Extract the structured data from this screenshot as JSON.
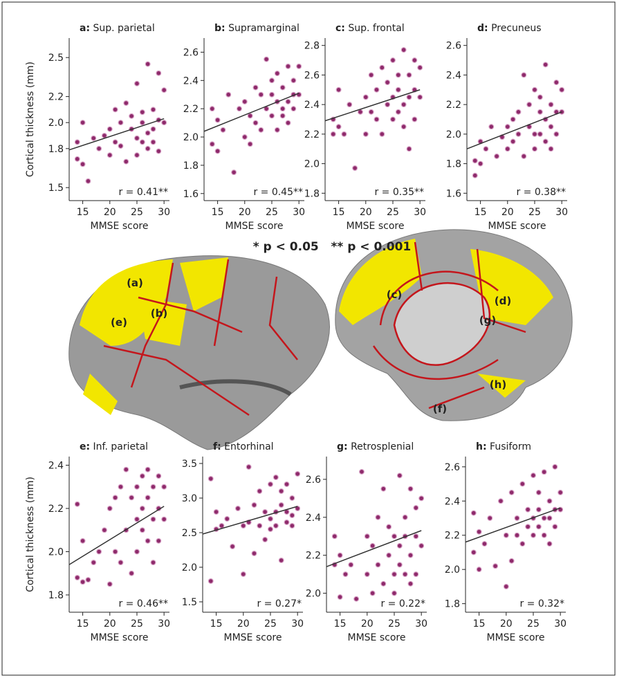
{
  "chart_data": [
    {
      "type": "scatter",
      "panel": "a:",
      "title": "Sup. parietal",
      "x_label": "MMSE score",
      "y_label": "Cortical thickness (mm)",
      "annotation": "r = 0.41**",
      "color": "#8e2a6b",
      "x": [
        14,
        14,
        15,
        15,
        16,
        17,
        18,
        19,
        20,
        20,
        21,
        21,
        22,
        22,
        23,
        23,
        24,
        24,
        25,
        25,
        25,
        26,
        26,
        26,
        27,
        27,
        27,
        28,
        28,
        28,
        29,
        29,
        29,
        30,
        30
      ],
      "y": [
        1.72,
        1.85,
        2.0,
        1.68,
        1.55,
        1.88,
        1.8,
        1.9,
        1.95,
        1.75,
        2.1,
        1.85,
        1.82,
        2.0,
        2.15,
        1.7,
        1.95,
        2.05,
        2.3,
        1.88,
        1.75,
        2.0,
        1.85,
        2.08,
        2.45,
        1.92,
        1.8,
        2.1,
        1.95,
        1.85,
        2.38,
        2.02,
        1.78,
        2.25,
        2.0
      ],
      "trend_x": [
        12.5,
        30
      ],
      "trend_y": [
        1.79,
        2.03
      ],
      "xlim": [
        12.5,
        31
      ],
      "ylim": [
        1.4,
        2.65
      ],
      "xticks": [
        15,
        20,
        25,
        30
      ],
      "yticks": [
        1.5,
        1.8,
        {
          "value": 2,
          "label": "2.0"
        },
        2.2,
        2.5
      ]
    },
    {
      "type": "scatter",
      "panel": "b:",
      "title": "Supramarginal",
      "x_label": "MMSE score",
      "annotation": "r = 0.45**",
      "color": "#8e2a6b",
      "x": [
        14,
        14,
        15,
        15,
        16,
        17,
        18,
        19,
        20,
        20,
        21,
        21,
        22,
        22,
        23,
        23,
        24,
        24,
        25,
        25,
        25,
        26,
        26,
        26,
        27,
        27,
        27,
        28,
        28,
        28,
        29,
        29,
        29,
        30,
        30
      ],
      "y": [
        1.95,
        2.2,
        1.9,
        2.12,
        2.05,
        2.3,
        1.75,
        2.2,
        2.0,
        2.25,
        2.15,
        1.95,
        2.35,
        2.1,
        2.3,
        2.05,
        2.55,
        2.2,
        2.4,
        2.15,
        2.3,
        2.25,
        2.05,
        2.45,
        2.2,
        2.35,
        2.15,
        2.5,
        2.25,
        2.1,
        2.3,
        2.4,
        2.2,
        2.5,
        2.3
      ],
      "trend_x": [
        12.5,
        30
      ],
      "trend_y": [
        2.04,
        2.31
      ],
      "xlim": [
        12.5,
        31
      ],
      "ylim": [
        1.55,
        2.7
      ],
      "xticks": [
        15,
        20,
        25,
        30
      ],
      "yticks": [
        1.6,
        1.8,
        {
          "value": 2,
          "label": "2.0"
        },
        2.2,
        2.4,
        2.6
      ]
    },
    {
      "type": "scatter",
      "panel": "c:",
      "title": "Sup. frontal",
      "x_label": "MMSE score",
      "annotation": "r = 0.35**",
      "color": "#8e2a6b",
      "x": [
        14,
        14,
        15,
        15,
        16,
        17,
        18,
        19,
        20,
        20,
        21,
        21,
        22,
        22,
        23,
        23,
        24,
        24,
        25,
        25,
        25,
        26,
        26,
        26,
        27,
        27,
        27,
        28,
        28,
        28,
        29,
        29,
        29,
        30,
        30
      ],
      "y": [
        2.2,
        2.3,
        2.5,
        2.25,
        2.2,
        2.4,
        1.97,
        2.35,
        2.45,
        2.2,
        2.6,
        2.35,
        2.3,
        2.5,
        2.65,
        2.2,
        2.4,
        2.55,
        2.7,
        2.45,
        2.3,
        2.6,
        2.35,
        2.5,
        2.77,
        2.4,
        2.25,
        2.6,
        2.45,
        2.1,
        2.7,
        2.5,
        2.3,
        2.65,
        2.45
      ],
      "trend_x": [
        12.5,
        30
      ],
      "trend_y": [
        2.29,
        2.5
      ],
      "xlim": [
        12.5,
        31
      ],
      "ylim": [
        1.75,
        2.85
      ],
      "xticks": [
        15,
        20,
        25,
        30
      ],
      "yticks": [
        1.8,
        {
          "value": 2,
          "label": "2.0"
        },
        2.2,
        2.4,
        2.6,
        2.8
      ]
    },
    {
      "type": "scatter",
      "panel": "d:",
      "title": "Precuneus",
      "x_label": "MMSE score",
      "annotation": "r = 0.38**",
      "color": "#8e2a6b",
      "x": [
        14,
        14,
        15,
        15,
        16,
        17,
        18,
        19,
        20,
        20,
        21,
        21,
        22,
        22,
        23,
        23,
        24,
        24,
        25,
        25,
        25,
        26,
        26,
        26,
        27,
        27,
        27,
        28,
        28,
        28,
        29,
        29,
        29,
        30,
        30
      ],
      "y": [
        1.72,
        1.82,
        1.95,
        1.8,
        1.9,
        2.05,
        1.85,
        1.98,
        2.05,
        1.9,
        2.1,
        1.95,
        2.0,
        2.15,
        2.4,
        1.85,
        2.05,
        2.2,
        2.3,
        2.0,
        1.9,
        2.15,
        2.0,
        2.25,
        2.47,
        2.1,
        1.95,
        2.2,
        2.05,
        1.9,
        2.35,
        2.15,
        2.0,
        2.3,
        2.15
      ],
      "trend_x": [
        12.5,
        30
      ],
      "trend_y": [
        1.9,
        2.15
      ],
      "xlim": [
        12.5,
        31
      ],
      "ylim": [
        1.55,
        2.65
      ],
      "xticks": [
        15,
        20,
        25,
        30
      ],
      "yticks": [
        1.6,
        1.8,
        {
          "value": 2,
          "label": "2.0"
        },
        2.2,
        2.4,
        2.6
      ]
    },
    {
      "type": "scatter",
      "panel": "e:",
      "title": "Inf. parietal",
      "x_label": "MMSE score",
      "y_label": "Cortical thickness (mm)",
      "annotation": "r = 0.46**",
      "color": "#8e2a6b",
      "x": [
        14,
        14,
        15,
        15,
        16,
        17,
        18,
        19,
        20,
        20,
        21,
        21,
        22,
        22,
        23,
        23,
        24,
        24,
        25,
        25,
        25,
        26,
        26,
        26,
        27,
        27,
        27,
        28,
        28,
        28,
        29,
        29,
        29,
        30,
        30
      ],
      "y": [
        2.22,
        1.88,
        1.86,
        2.05,
        1.87,
        1.95,
        2.0,
        2.1,
        2.2,
        1.85,
        2.25,
        2.0,
        2.3,
        1.95,
        2.38,
        2.1,
        2.25,
        1.9,
        2.3,
        2.15,
        2.0,
        2.35,
        2.1,
        2.2,
        2.38,
        2.25,
        2.05,
        2.3,
        2.15,
        1.95,
        2.35,
        2.2,
        2.05,
        2.3,
        2.15
      ],
      "trend_x": [
        12.5,
        30
      ],
      "trend_y": [
        1.94,
        2.21
      ],
      "xlim": [
        12.5,
        31
      ],
      "ylim": [
        1.72,
        2.44
      ],
      "xticks": [
        15,
        20,
        25,
        30
      ],
      "yticks": [
        1.8,
        {
          "value": 2,
          "label": "2.0"
        },
        2.2,
        2.4
      ]
    },
    {
      "type": "scatter",
      "panel": "f:",
      "title": "Entorhinal",
      "x_label": "MMSE score",
      "annotation": "r = 0.27*",
      "color": "#8e2a6b",
      "x": [
        14,
        14,
        15,
        15,
        16,
        17,
        18,
        19,
        20,
        20,
        21,
        21,
        22,
        22,
        23,
        23,
        24,
        24,
        25,
        25,
        25,
        26,
        26,
        26,
        27,
        27,
        27,
        28,
        28,
        28,
        29,
        29,
        29,
        30,
        30
      ],
      "y": [
        3.28,
        1.8,
        2.8,
        2.55,
        2.6,
        2.7,
        2.3,
        2.85,
        2.6,
        1.9,
        3.45,
        2.65,
        2.9,
        2.2,
        3.1,
        2.6,
        2.8,
        2.4,
        3.2,
        2.7,
        2.55,
        3.3,
        2.8,
        2.6,
        3.1,
        2.9,
        2.1,
        3.2,
        2.8,
        2.65,
        3.0,
        2.75,
        2.6,
        3.35,
        2.85
      ],
      "trend_x": [
        12.5,
        30
      ],
      "trend_y": [
        2.48,
        2.88
      ],
      "xlim": [
        12.5,
        31
      ],
      "ylim": [
        1.35,
        3.6
      ],
      "xticks": [
        15,
        20,
        25,
        30
      ],
      "yticks": [
        1.5,
        {
          "value": 2,
          "label": "2.0"
        },
        2.5,
        {
          "value": 3,
          "label": "3.0"
        },
        3.5
      ]
    },
    {
      "type": "scatter",
      "panel": "g:",
      "title": "Retrosplenial",
      "x_label": "MMSE score",
      "annotation": "r = 0.22*",
      "color": "#8e2a6b",
      "x": [
        14,
        14,
        15,
        15,
        16,
        17,
        18,
        19,
        20,
        20,
        21,
        21,
        22,
        22,
        23,
        23,
        24,
        24,
        25,
        25,
        25,
        26,
        26,
        26,
        27,
        27,
        27,
        28,
        28,
        28,
        29,
        29,
        29,
        30,
        30
      ],
      "y": [
        2.3,
        2.15,
        1.98,
        2.2,
        2.1,
        2.15,
        1.97,
        2.64,
        2.3,
        2.1,
        2.0,
        2.25,
        2.4,
        2.15,
        2.55,
        2.05,
        2.2,
        2.35,
        2.1,
        2.3,
        2.0,
        2.62,
        2.15,
        2.25,
        2.4,
        2.1,
        2.3,
        2.55,
        2.2,
        2.05,
        2.45,
        2.3,
        2.1,
        2.5,
        2.25
      ],
      "trend_x": [
        12.5,
        30
      ],
      "trend_y": [
        2.14,
        2.33
      ],
      "xlim": [
        12.5,
        31
      ],
      "ylim": [
        1.9,
        2.72
      ],
      "xticks": [
        15,
        20,
        25,
        30
      ],
      "yticks": [
        {
          "value": 2,
          "label": "2.0"
        },
        2.2,
        2.4,
        2.6
      ]
    },
    {
      "type": "scatter",
      "panel": "h:",
      "title": "Fusiform",
      "x_label": "MMSE score",
      "annotation": "r = 0.32*",
      "color": "#8e2a6b",
      "x": [
        14,
        14,
        15,
        15,
        16,
        17,
        18,
        19,
        20,
        20,
        21,
        21,
        22,
        22,
        23,
        23,
        24,
        24,
        25,
        25,
        25,
        26,
        26,
        26,
        27,
        27,
        27,
        28,
        28,
        28,
        29,
        29,
        29,
        30,
        30
      ],
      "y": [
        2.33,
        2.1,
        2.0,
        2.22,
        2.15,
        2.3,
        2.02,
        2.4,
        1.9,
        2.2,
        2.45,
        2.05,
        2.3,
        2.2,
        2.5,
        2.15,
        2.35,
        2.25,
        2.55,
        2.3,
        2.2,
        2.45,
        2.25,
        2.35,
        2.57,
        2.3,
        2.2,
        2.4,
        2.3,
        2.15,
        2.6,
        2.35,
        2.25,
        2.45,
        2.35
      ],
      "trend_x": [
        12.5,
        30
      ],
      "trend_y": [
        2.16,
        2.36
      ],
      "xlim": [
        12.5,
        31
      ],
      "ylim": [
        1.75,
        2.66
      ],
      "xticks": [
        15,
        20,
        25,
        30
      ],
      "yticks": [
        1.8,
        {
          "value": 2,
          "label": "2.0"
        },
        2.2,
        2.4,
        2.6
      ]
    }
  ],
  "significance_note": "* p < 0.05   ** p < 0.001",
  "brain_labels": [
    "(a)",
    "(b)",
    "(c)",
    "(d)",
    "(e)",
    "(f)",
    "(g)",
    "(h)"
  ]
}
